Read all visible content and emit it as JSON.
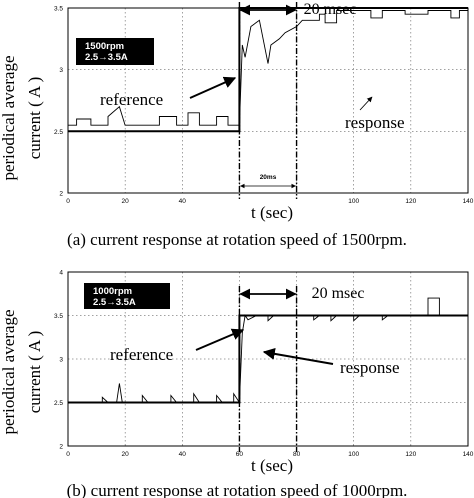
{
  "chart_data": [
    {
      "type": "line",
      "ylabel_lines": [
        "periodical average",
        "current ( A )"
      ],
      "xlabel": "t (sec)",
      "caption": "(a) current response at rotation speed of 1500rpm.",
      "legend_box_lines": [
        "1500rpm",
        "2.5→3.5A"
      ],
      "xlim": [
        0,
        140
      ],
      "ylim": [
        2,
        3.5
      ],
      "x_ticks": [
        0,
        20,
        40,
        60,
        80,
        100,
        120,
        140
      ],
      "x_tick_labels": [
        "0",
        "20",
        "40",
        "",
        "",
        "100",
        "120",
        "140"
      ],
      "y_ticks": [
        2,
        2.5,
        3,
        3.5
      ],
      "y_tick_labels": [
        "2",
        "2.5",
        "3",
        "3.5"
      ],
      "step_x": 60,
      "window_end_x": 80,
      "interval_label": "20 msec",
      "small_interval_label": "20ms",
      "grid": true,
      "series": [
        {
          "name": "reference",
          "values": [
            [
              0,
              2.5
            ],
            [
              60,
              2.5
            ],
            [
              60,
              3.5
            ],
            [
              140,
              3.5
            ]
          ]
        },
        {
          "name": "response",
          "values": [
            [
              0,
              2.55
            ],
            [
              3,
              2.55
            ],
            [
              3,
              2.6
            ],
            [
              8,
              2.6
            ],
            [
              8,
              2.55
            ],
            [
              14,
              2.55
            ],
            [
              14,
              2.62
            ],
            [
              18,
              2.7
            ],
            [
              20,
              2.55
            ],
            [
              32,
              2.55
            ],
            [
              32,
              2.62
            ],
            [
              38,
              2.62
            ],
            [
              38,
              2.55
            ],
            [
              42,
              2.55
            ],
            [
              42,
              2.65
            ],
            [
              46,
              2.65
            ],
            [
              46,
              2.55
            ],
            [
              52,
              2.55
            ],
            [
              52,
              2.62
            ],
            [
              56,
              2.62
            ],
            [
              56,
              2.55
            ],
            [
              60,
              2.55
            ],
            [
              61,
              3.2
            ],
            [
              62,
              3.1
            ],
            [
              64,
              3.35
            ],
            [
              67,
              3.4
            ],
            [
              70,
              3.05
            ],
            [
              71,
              3.2
            ],
            [
              74,
              3.25
            ],
            [
              76,
              3.3
            ],
            [
              80,
              3.35
            ],
            [
              82,
              3.4
            ],
            [
              88,
              3.4
            ],
            [
              88,
              3.45
            ],
            [
              90,
              3.45
            ],
            [
              90,
              3.38
            ],
            [
              94,
              3.38
            ],
            [
              94,
              3.48
            ],
            [
              106,
              3.48
            ],
            [
              106,
              3.42
            ],
            [
              110,
              3.42
            ],
            [
              110,
              3.48
            ],
            [
              118,
              3.48
            ],
            [
              118,
              3.45
            ],
            [
              126,
              3.45
            ],
            [
              126,
              3.48
            ],
            [
              134,
              3.48
            ],
            [
              134,
              3.42
            ],
            [
              137,
              3.42
            ],
            [
              137,
              3.48
            ],
            [
              140,
              3.48
            ]
          ]
        }
      ]
    },
    {
      "type": "line",
      "ylabel_lines": [
        "periodical average",
        "current ( A )"
      ],
      "xlabel": "t (sec)",
      "caption": "(b) current response at rotation speed of 1000rpm.",
      "legend_box_lines": [
        "1000rpm",
        "2.5→3.5A"
      ],
      "xlim": [
        0,
        140
      ],
      "ylim": [
        2,
        4
      ],
      "x_ticks": [
        0,
        20,
        40,
        60,
        80,
        100,
        120,
        140
      ],
      "x_tick_labels": [
        "0",
        "20",
        "40",
        "60",
        "80",
        "100",
        "120",
        "140"
      ],
      "y_ticks": [
        2,
        2.5,
        3,
        3.5,
        4
      ],
      "y_tick_labels": [
        "2",
        "2.5",
        "3",
        "3.5",
        "4"
      ],
      "step_x": 60,
      "window_end_x": 80,
      "interval_label": "20 msec",
      "grid": true,
      "series": [
        {
          "name": "reference",
          "values": [
            [
              0,
              2.5
            ],
            [
              60,
              2.5
            ],
            [
              60,
              3.5
            ],
            [
              140,
              3.5
            ]
          ]
        },
        {
          "name": "response",
          "values": [
            [
              0,
              2.5
            ],
            [
              12,
              2.5
            ],
            [
              12,
              2.56
            ],
            [
              14,
              2.5
            ],
            [
              17,
              2.5
            ],
            [
              18,
              2.72
            ],
            [
              19,
              2.5
            ],
            [
              26,
              2.5
            ],
            [
              26,
              2.58
            ],
            [
              28,
              2.5
            ],
            [
              36,
              2.5
            ],
            [
              36,
              2.58
            ],
            [
              38,
              2.5
            ],
            [
              44,
              2.5
            ],
            [
              44,
              2.6
            ],
            [
              46,
              2.5
            ],
            [
              52,
              2.5
            ],
            [
              52,
              2.58
            ],
            [
              54,
              2.5
            ],
            [
              58,
              2.5
            ],
            [
              58,
              2.6
            ],
            [
              60,
              2.5
            ],
            [
              61,
              3.3
            ],
            [
              62,
              3.5
            ],
            [
              63,
              3.45
            ],
            [
              66,
              3.5
            ],
            [
              70,
              3.5
            ],
            [
              70,
              3.44
            ],
            [
              72,
              3.5
            ],
            [
              86,
              3.5
            ],
            [
              86,
              3.45
            ],
            [
              88,
              3.5
            ],
            [
              92,
              3.5
            ],
            [
              92,
              3.44
            ],
            [
              94,
              3.5
            ],
            [
              100,
              3.5
            ],
            [
              100,
              3.44
            ],
            [
              102,
              3.5
            ],
            [
              110,
              3.5
            ],
            [
              110,
              3.45
            ],
            [
              112,
              3.5
            ],
            [
              126,
              3.5
            ],
            [
              126,
              3.7
            ],
            [
              130,
              3.7
            ],
            [
              130,
              3.5
            ],
            [
              140,
              3.5
            ]
          ]
        }
      ]
    }
  ]
}
